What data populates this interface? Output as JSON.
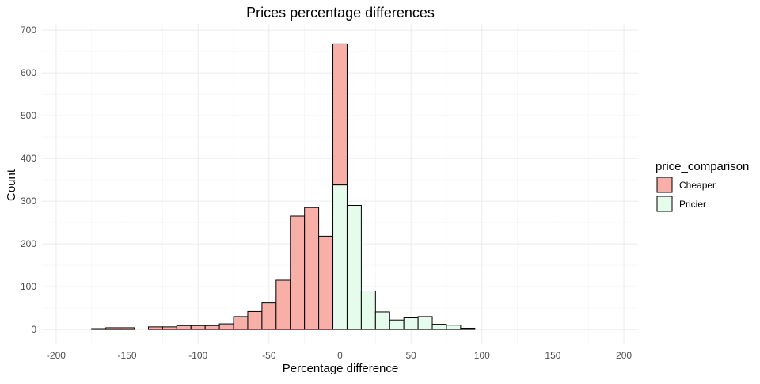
{
  "chart_data": {
    "type": "bar",
    "title": "Prices percentage differences",
    "xlabel": "Percentage difference",
    "ylabel": "Count",
    "xlim": [
      -210,
      210
    ],
    "ylim": [
      -35,
      700
    ],
    "x_ticks": [
      -200,
      -150,
      -100,
      -50,
      0,
      50,
      100,
      150,
      200
    ],
    "x_tick_labels": [
      "-200",
      "-150",
      "-100",
      "-50",
      "0",
      "50",
      "100",
      "150",
      "200"
    ],
    "y_ticks": [
      0,
      100,
      200,
      300,
      400,
      500,
      600,
      700
    ],
    "y_tick_labels": [
      "0",
      "100",
      "200",
      "300",
      "400",
      "500",
      "600",
      "700"
    ],
    "bin_width": 10,
    "stacked": true,
    "grid": true,
    "legend": {
      "title": "price_comparison",
      "position": "right",
      "entries": [
        {
          "label": "Cheaper",
          "color": "#F8AFA8"
        },
        {
          "label": "Pricier",
          "color": "#E5FBEC"
        }
      ]
    },
    "bin_centers": [
      -190,
      -180,
      -170,
      -160,
      -150,
      -140,
      -130,
      -120,
      -110,
      -100,
      -90,
      -80,
      -70,
      -60,
      -50,
      -40,
      -30,
      -20,
      -10,
      0,
      10,
      20,
      30,
      40,
      50,
      60,
      70,
      80,
      90,
      100,
      110,
      120,
      130,
      140,
      150,
      160,
      170,
      180,
      190
    ],
    "series": [
      {
        "name": "Cheaper",
        "color": "#F8AFA8",
        "values": [
          0,
          0,
          2,
          4,
          4,
          0,
          6,
          6,
          9,
          9,
          9,
          13,
          30,
          42,
          62,
          115,
          265,
          285,
          218,
          330,
          0,
          0,
          0,
          0,
          0,
          0,
          0,
          0,
          0,
          0,
          0,
          0,
          0,
          0,
          0,
          0,
          0,
          0,
          0
        ]
      },
      {
        "name": "Pricier",
        "color": "#E5FBEC",
        "values": [
          0,
          0,
          0,
          0,
          0,
          0,
          0,
          0,
          0,
          0,
          0,
          0,
          0,
          0,
          0,
          0,
          0,
          0,
          0,
          338,
          290,
          90,
          41,
          22,
          27,
          30,
          12,
          10,
          3,
          0,
          0,
          0,
          0,
          0,
          0,
          0,
          0,
          0,
          0
        ]
      }
    ]
  }
}
